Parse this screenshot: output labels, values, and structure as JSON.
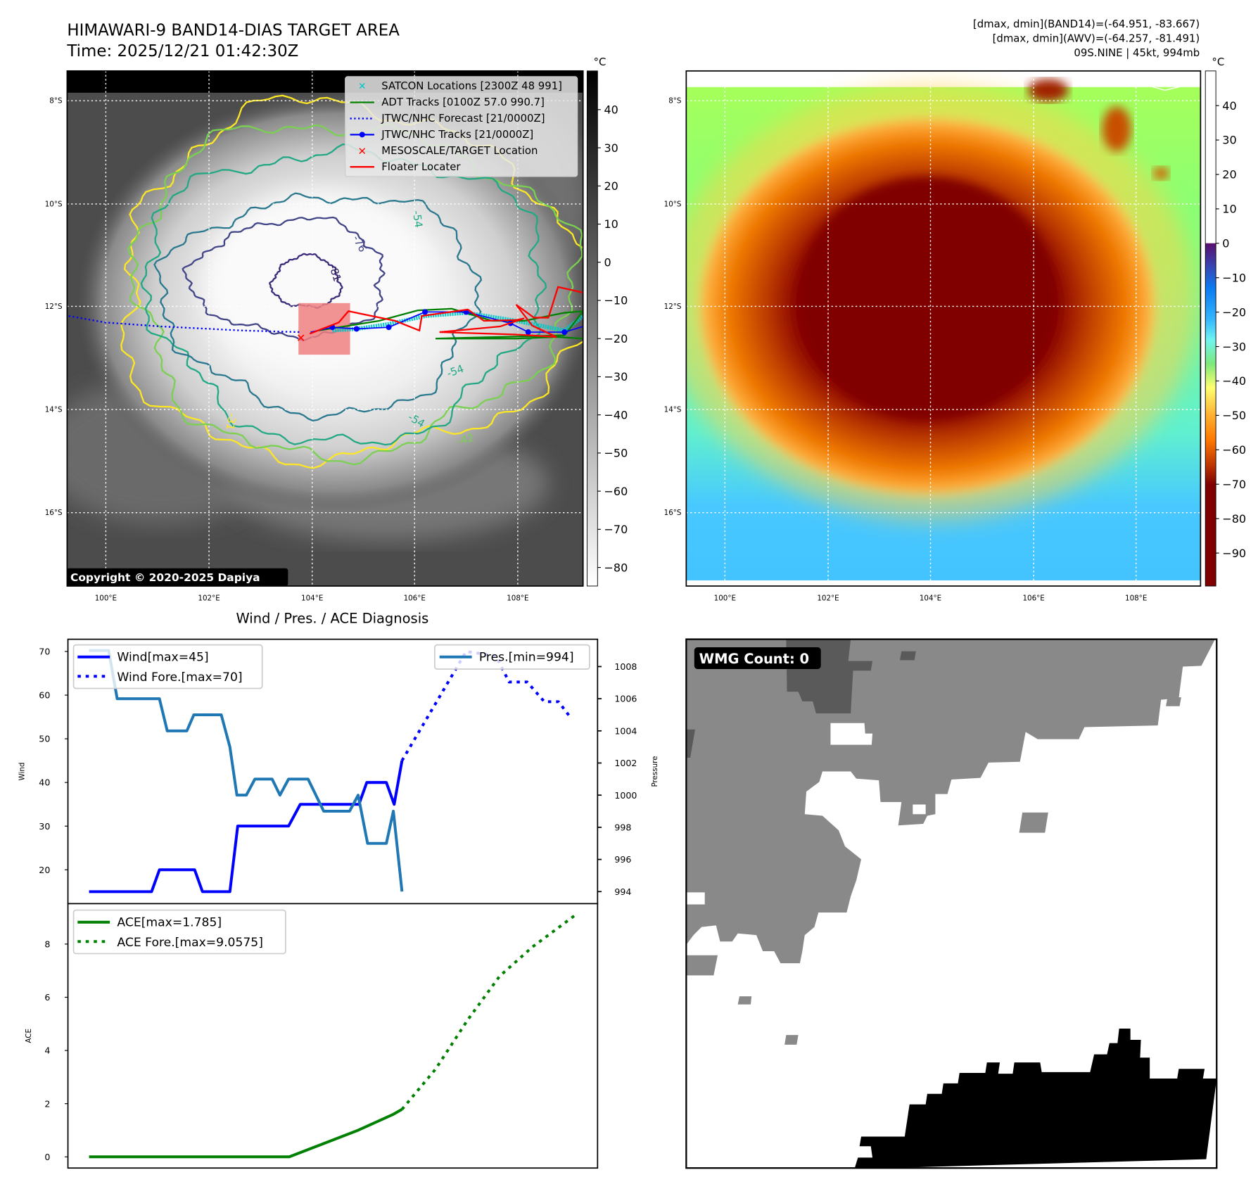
{
  "header": {
    "title": "HIMAWARI-9 BAND14-DIAS TARGET AREA",
    "time": "Time: 2025/12/21 01:42:30Z",
    "info_line1": "[dmax, dmin](BAND14)=(-64.951, -83.667)",
    "info_line2": "[dmax, dmin](AWV)=(-64.257, -81.491)",
    "info_line3": "09S.NINE | 45kt, 994mb"
  },
  "ir_map": {
    "lat_labels": [
      "8°S",
      "10°S",
      "12°S",
      "14°S",
      "16°S"
    ],
    "lon_labels": [
      "100°E",
      "102°E",
      "104°E",
      "106°E",
      "108°E"
    ],
    "colorbar_unit": "°C",
    "colorbar_ticks": [
      "40",
      "30",
      "20",
      "10",
      "0",
      "−10",
      "−20",
      "−30",
      "−40",
      "−50",
      "−60",
      "−70",
      "−80"
    ],
    "contour_labels": [
      "-76",
      "-81",
      "-54",
      "-54",
      "-54",
      "-42",
      "-31"
    ],
    "copyright": "Copyright © 2020-2025 Dapiya",
    "legend": [
      {
        "label": "SATCON Locations [2300Z 48 991]",
        "color": "#00c8c8"
      },
      {
        "label": "ADT Tracks [0100Z 57.0 990.7]",
        "color": "#008000"
      },
      {
        "label": "JTWC/NHC Forecast [21/0000Z]",
        "color": "#0000ff"
      },
      {
        "label": "JTWC/NHC Tracks [21/0000Z]",
        "color": "#0000ff"
      },
      {
        "label": "MESOSCALE/TARGET Location",
        "color": "#ff0000"
      },
      {
        "label": "Floater Locater",
        "color": "#ff0000"
      }
    ]
  },
  "awv_map": {
    "lat_labels": [
      "8°S",
      "10°S",
      "12°S",
      "14°S",
      "16°S"
    ],
    "lon_labels": [
      "100°E",
      "102°E",
      "104°E",
      "106°E",
      "108°E"
    ],
    "colorbar_unit": "°C",
    "colorbar_ticks": [
      "40",
      "30",
      "20",
      "10",
      "0",
      "−10",
      "−20",
      "−30",
      "−40",
      "−50",
      "−60",
      "−70",
      "−80",
      "−90"
    ]
  },
  "diagnosis": {
    "title": "Wind / Pres. / ACE Diagnosis"
  },
  "wmg": {
    "label": "WMG Count: 0"
  },
  "chart_data": [
    {
      "type": "line",
      "title": "Wind / Pres. / ACE Diagnosis",
      "ylabel": "Wind",
      "y2label": "Pressure",
      "xlim": [
        -2.7,
        65
      ],
      "ylim": [
        12.25,
        72.8
      ],
      "y2lim": [
        993.25,
        1009.7
      ],
      "yticks": [
        20,
        30,
        40,
        50,
        60,
        70
      ],
      "y2ticks": [
        994,
        996,
        998,
        1000,
        1002,
        1004,
        1006,
        1008
      ],
      "legend_left": [
        "Wind[max=45]",
        "Wind Fore.[max=70]"
      ],
      "legend_right": [
        "Pres.[min=994]"
      ],
      "series": [
        {
          "name": "Wind",
          "axis": "y",
          "color": "#0000ff",
          "style": "solid",
          "points": [
            [
              0,
              15
            ],
            [
              8,
              15
            ],
            [
              9,
              20
            ],
            [
              13.5,
              20
            ],
            [
              14.5,
              15
            ],
            [
              18,
              15
            ],
            [
              19,
              30
            ],
            [
              25.5,
              30
            ],
            [
              27,
              35
            ],
            [
              34.5,
              35
            ],
            [
              35.5,
              40
            ],
            [
              38,
              40
            ],
            [
              39,
              35
            ],
            [
              40,
              45
            ]
          ]
        },
        {
          "name": "Wind Fore.",
          "axis": "y",
          "color": "#0000ff",
          "style": "dotted",
          "points": [
            [
              40,
              45
            ],
            [
              48.2,
              70
            ],
            [
              52,
              69
            ],
            [
              53.7,
              63
            ],
            [
              56,
              63
            ],
            [
              58.2,
              58.5
            ],
            [
              60,
              58.5
            ],
            [
              61.5,
              55
            ]
          ]
        },
        {
          "name": "Pres.",
          "axis": "y2",
          "color": "#1f77b4",
          "style": "solid",
          "points": [
            [
              0,
              1009
            ],
            [
              2.5,
              1009
            ],
            [
              3.6,
              1006
            ],
            [
              9,
              1006
            ],
            [
              10,
              1004
            ],
            [
              12.5,
              1004
            ],
            [
              13.4,
              1005
            ],
            [
              16.9,
              1005
            ],
            [
              18,
              1003
            ],
            [
              18.9,
              1000
            ],
            [
              20.1,
              1000
            ],
            [
              21.2,
              1001
            ],
            [
              23.4,
              1001
            ],
            [
              24.4,
              1000
            ],
            [
              25.5,
              1001
            ],
            [
              28,
              1001
            ],
            [
              30,
              999
            ],
            [
              33.3,
              999
            ],
            [
              34.4,
              1000
            ],
            [
              35.6,
              997
            ],
            [
              38,
              997
            ],
            [
              38.9,
              999
            ],
            [
              40,
              994
            ]
          ]
        }
      ]
    },
    {
      "type": "line",
      "ylabel": "ACE",
      "xlim": [
        -2.7,
        65
      ],
      "ylim": [
        -0.42,
        9.52
      ],
      "yticks": [
        0,
        2,
        4,
        6,
        8
      ],
      "legend": [
        "ACE[max=1.785]",
        "ACE Fore.[max=9.0575]"
      ],
      "series": [
        {
          "name": "ACE",
          "color": "#008000",
          "style": "solid",
          "points": [
            [
              0,
              0
            ],
            [
              25.6,
              0
            ],
            [
              30,
              0.5
            ],
            [
              34.4,
              1.0
            ],
            [
              38.9,
              1.6
            ],
            [
              40,
              1.785
            ]
          ]
        },
        {
          "name": "ACE Fore.",
          "color": "#008000",
          "style": "dotted",
          "points": [
            [
              40,
              1.785
            ],
            [
              44.3,
              3.3
            ],
            [
              48.4,
              5.15
            ],
            [
              52.5,
              6.8
            ],
            [
              56.7,
              7.9
            ],
            [
              62,
              9.0575
            ]
          ]
        }
      ]
    }
  ]
}
